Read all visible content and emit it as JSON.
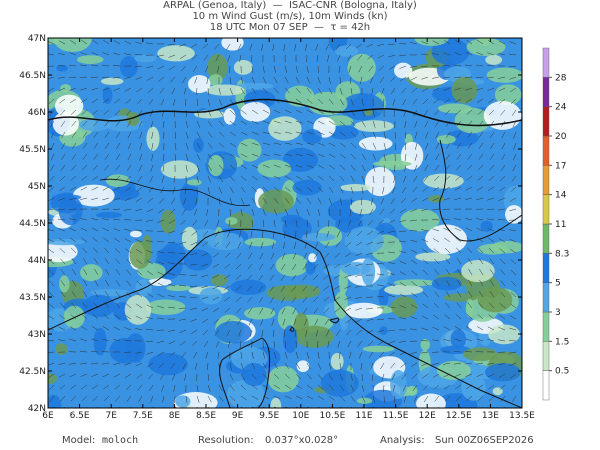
{
  "header": {
    "lines": [
      "ARPAL (Genoa, Italy)  —  ISAC-CNR (Bologna, Italy)",
      "10 m Wind Gust (m/s), 10m Winds (kn)",
      "18 UTC Mon 07 SEP  —  τ = 42h"
    ]
  },
  "map": {
    "lonlim": [
      6,
      13.5
    ],
    "latlim": [
      42,
      47
    ],
    "lonticks": [
      {
        "value": 6,
        "label": "6E"
      },
      {
        "value": 6.5,
        "label": "6.5E"
      },
      {
        "value": 7,
        "label": "7E"
      },
      {
        "value": 7.5,
        "label": "7.5E"
      },
      {
        "value": 8,
        "label": "8E"
      },
      {
        "value": 8.5,
        "label": "8.5E"
      },
      {
        "value": 9,
        "label": "9E"
      },
      {
        "value": 9.5,
        "label": "9.5E"
      },
      {
        "value": 10,
        "label": "10E"
      },
      {
        "value": 10.5,
        "label": "10.5E"
      },
      {
        "value": 11,
        "label": "11E"
      },
      {
        "value": 11.5,
        "label": "11.5E"
      },
      {
        "value": 12,
        "label": "12E"
      },
      {
        "value": 12.5,
        "label": "12.5E"
      },
      {
        "value": 13,
        "label": "13E"
      },
      {
        "value": 13.5,
        "label": "13.5E"
      }
    ],
    "latticks": [
      {
        "value": 42,
        "label": "42N"
      },
      {
        "value": 42.5,
        "label": "42.5N"
      },
      {
        "value": 43,
        "label": "43N"
      },
      {
        "value": 43.5,
        "label": "43.5N"
      },
      {
        "value": 44,
        "label": "44N"
      },
      {
        "value": 44.5,
        "label": "44.5N"
      },
      {
        "value": 45,
        "label": "45N"
      },
      {
        "value": 45.5,
        "label": "45.5N"
      },
      {
        "value": 46,
        "label": "46N"
      },
      {
        "value": 46.5,
        "label": "46.5N"
      },
      {
        "value": 47,
        "label": "47N"
      }
    ]
  },
  "colorbar": {
    "levels": [
      0.5,
      1.5,
      3,
      5,
      8.3,
      11,
      14,
      17,
      20,
      24,
      28
    ],
    "colors": [
      "#ffffff",
      "#c8e6c8",
      "#86cf9a",
      "#4fa6e8",
      "#1f78dc",
      "#6fb86a",
      "#d8c84a",
      "#e89a3a",
      "#e0602a",
      "#b02020",
      "#7a2aa0",
      "#c8a0e8"
    ]
  },
  "footer": {
    "model_label": "Model:",
    "model": "moloch",
    "resolution_label": "Resolution:",
    "resolution": "0.037°x0.028°",
    "analysis_label": "Analysis:",
    "analysis": "Sun 00Z06SEP2026"
  }
}
